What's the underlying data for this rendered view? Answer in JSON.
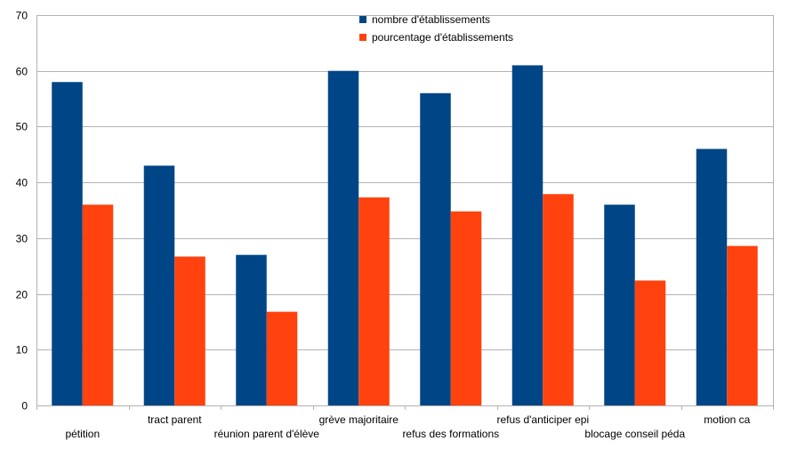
{
  "chart_data": {
    "type": "bar",
    "categories": [
      "pétition",
      "tract parent",
      "réunion parent d'élève",
      "grève majoritaire",
      "refus des formations",
      "refus d'anticiper epi",
      "blocage conseil péda",
      "motion ca"
    ],
    "series": [
      {
        "name": "nombre d'établissements",
        "color": "#004586",
        "values": [
          58,
          43,
          27,
          60,
          56,
          61,
          36,
          46
        ]
      },
      {
        "name": "pourcentage d'établissements",
        "color": "#ff420e",
        "values": [
          36.0,
          26.7,
          16.8,
          37.3,
          34.8,
          37.9,
          22.4,
          28.6
        ]
      }
    ],
    "ylim": [
      0,
      70
    ],
    "yticks": [
      0,
      10,
      20,
      30,
      40,
      50,
      60,
      70
    ],
    "grid": true,
    "legend": "top-center",
    "title": "",
    "xlabel": "",
    "ylabel": ""
  }
}
